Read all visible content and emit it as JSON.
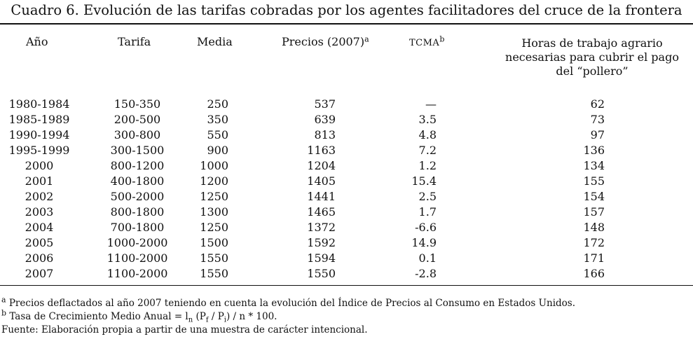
{
  "title": "Cuadro 6. Evolución de las tarifas cobradas por los agentes facilitadores del cruce de la frontera",
  "headers": {
    "year": "Año",
    "tarifa": "Tarifa",
    "media": "Media",
    "precios": "Precios (2007)",
    "precios_note": "a",
    "tcma": "TCMA",
    "tcma_note": "b",
    "hours_line1": "Horas de trabajo agrario",
    "hours_line2": "necesarias para cubrir el pago",
    "hours_line3": "del “pollero”"
  },
  "rows": [
    {
      "year": "1980-1984",
      "tarifa": "150-350",
      "media": "250",
      "precio": "537",
      "tcma": "—",
      "horas": "62"
    },
    {
      "year": "1985-1989",
      "tarifa": "200-500",
      "media": "350",
      "precio": "639",
      "tcma": "3.5",
      "horas": "73"
    },
    {
      "year": "1990-1994",
      "tarifa": "300-800",
      "media": "550",
      "precio": "813",
      "tcma": "4.8",
      "horas": "97"
    },
    {
      "year": "1995-1999",
      "tarifa": "300-1500",
      "media": "900",
      "precio": "1163",
      "tcma": "7.2",
      "horas": "136"
    },
    {
      "year": "2000",
      "tarifa": "800-1200",
      "media": "1000",
      "precio": "1204",
      "tcma": "1.2",
      "horas": "134"
    },
    {
      "year": "2001",
      "tarifa": "400-1800",
      "media": "1200",
      "precio": "1405",
      "tcma": "15.4",
      "horas": "155"
    },
    {
      "year": "2002",
      "tarifa": "500-2000",
      "media": "1250",
      "precio": "1441",
      "tcma": "2.5",
      "horas": "154"
    },
    {
      "year": "2003",
      "tarifa": "800-1800",
      "media": "1300",
      "precio": "1465",
      "tcma": "1.7",
      "horas": "157"
    },
    {
      "year": "2004",
      "tarifa": "700-1800",
      "media": "1250",
      "precio": "1372",
      "tcma": "-6.6",
      "horas": "148"
    },
    {
      "year": "2005",
      "tarifa": "1000-2000",
      "media": "1500",
      "precio": "1592",
      "tcma": "14.9",
      "horas": "172"
    },
    {
      "year": "2006",
      "tarifa": "1100-2000",
      "media": "1550",
      "precio": "1594",
      "tcma": "0.1",
      "horas": "171"
    },
    {
      "year": "2007",
      "tarifa": "1100-2000",
      "media": "1550",
      "precio": "1550",
      "tcma": "-2.8",
      "horas": "166"
    }
  ],
  "footnotes": {
    "a_mark": "a",
    "a_text": " Precios deflactados al año 2007 teniendo en cuenta la evolución del Índice de Precios al Consumo en Estados Unidos.",
    "b_mark": "b",
    "b_pre": " Tasa de Crecimiento Medio Anual = l",
    "b_sub_n": "n",
    "b_mid1": " (P",
    "b_sub_f": "f",
    "b_mid2": " / P",
    "b_sub_i": "i",
    "b_post": ") / n * 100.",
    "source": "Fuente: Elaboración propia a partir de una muestra de carácter intencional."
  }
}
